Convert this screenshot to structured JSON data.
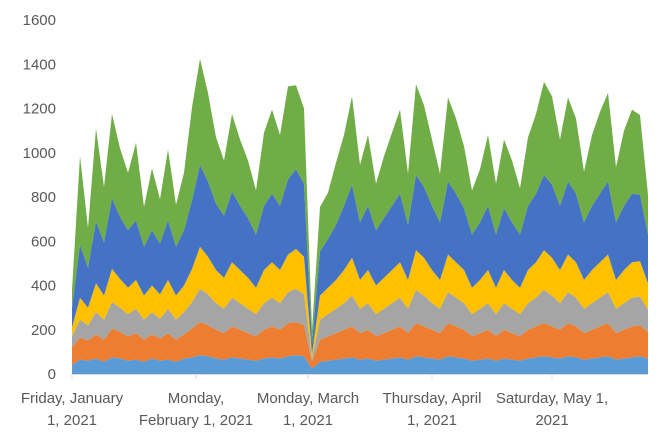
{
  "chart_data": {
    "type": "area",
    "stacked": true,
    "x": [
      "2021-01-01",
      "2021-01-03",
      "2021-01-05",
      "2021-01-07",
      "2021-01-09",
      "2021-01-11",
      "2021-01-13",
      "2021-01-15",
      "2021-01-17",
      "2021-01-19",
      "2021-01-21",
      "2021-01-23",
      "2021-01-25",
      "2021-01-27",
      "2021-01-29",
      "2021-01-31",
      "2021-02-02",
      "2021-02-04",
      "2021-02-06",
      "2021-02-08",
      "2021-02-10",
      "2021-02-12",
      "2021-02-14",
      "2021-02-16",
      "2021-02-18",
      "2021-02-20",
      "2021-02-22",
      "2021-02-24",
      "2021-02-26",
      "2021-02-28",
      "2021-03-02",
      "2021-03-04",
      "2021-03-06",
      "2021-03-08",
      "2021-03-10",
      "2021-03-12",
      "2021-03-14",
      "2021-03-16",
      "2021-03-18",
      "2021-03-20",
      "2021-03-22",
      "2021-03-24",
      "2021-03-26",
      "2021-03-28",
      "2021-03-30",
      "2021-04-01",
      "2021-04-03",
      "2021-04-05",
      "2021-04-07",
      "2021-04-09",
      "2021-04-11",
      "2021-04-13",
      "2021-04-15",
      "2021-04-17",
      "2021-04-19",
      "2021-04-21",
      "2021-04-23",
      "2021-04-25",
      "2021-04-27",
      "2021-04-29",
      "2021-05-01",
      "2021-05-03",
      "2021-05-05",
      "2021-05-07",
      "2021-05-09",
      "2021-05-11",
      "2021-05-13",
      "2021-05-15",
      "2021-05-17",
      "2021-05-19",
      "2021-05-21",
      "2021-05-23",
      "2021-05-25"
    ],
    "x_tick_labels": [
      [
        "Friday, January",
        "1, 2021"
      ],
      [
        "Monday,",
        "February 1, 2021"
      ],
      [
        "Monday, March",
        "1, 2021"
      ],
      [
        "Thursday, April",
        "1, 2021"
      ],
      [
        "Saturday, May 1,",
        "2021"
      ]
    ],
    "x_tick_dates": [
      "2021-01-01",
      "2021-02-01",
      "2021-03-01",
      "2021-04-01",
      "2021-05-01"
    ],
    "y_ticks": [
      0,
      200,
      400,
      600,
      800,
      1000,
      1200,
      1400,
      1600
    ],
    "ylim": [
      0,
      1600
    ],
    "grid": false,
    "legend": "none",
    "series": [
      {
        "color": "#5b9bd5",
        "values": [
          40,
          65,
          60,
          70,
          55,
          75,
          70,
          60,
          65,
          55,
          70,
          60,
          65,
          55,
          70,
          75,
          85,
          80,
          70,
          65,
          75,
          70,
          65,
          60,
          70,
          75,
          70,
          80,
          85,
          80,
          25,
          55,
          60,
          65,
          70,
          75,
          65,
          70,
          60,
          65,
          70,
          75,
          65,
          80,
          75,
          70,
          65,
          80,
          75,
          70,
          60,
          65,
          70,
          60,
          70,
          65,
          60,
          70,
          75,
          80,
          75,
          70,
          80,
          75,
          65,
          70,
          75,
          80,
          65,
          70,
          75,
          80,
          70
        ]
      },
      {
        "color": "#ed7d31",
        "values": [
          80,
          100,
          90,
          110,
          100,
          130,
          120,
          110,
          120,
          100,
          110,
          100,
          120,
          100,
          110,
          130,
          150,
          140,
          130,
          120,
          140,
          130,
          120,
          110,
          130,
          140,
          130,
          150,
          150,
          140,
          30,
          100,
          110,
          120,
          130,
          140,
          120,
          130,
          110,
          120,
          130,
          140,
          120,
          150,
          140,
          130,
          120,
          150,
          140,
          130,
          110,
          120,
          130,
          110,
          130,
          120,
          110,
          130,
          140,
          150,
          140,
          130,
          150,
          140,
          120,
          130,
          140,
          150,
          120,
          130,
          140,
          140,
          120
        ]
      },
      {
        "color": "#a5a5a5",
        "values": [
          50,
          80,
          70,
          100,
          90,
          120,
          110,
          100,
          110,
          90,
          100,
          90,
          110,
          90,
          100,
          120,
          150,
          140,
          120,
          110,
          130,
          120,
          110,
          100,
          120,
          130,
          120,
          140,
          150,
          140,
          15,
          90,
          100,
          110,
          120,
          140,
          110,
          120,
          100,
          110,
          120,
          130,
          110,
          150,
          140,
          120,
          110,
          140,
          130,
          120,
          100,
          110,
          120,
          100,
          120,
          110,
          100,
          120,
          130,
          150,
          140,
          120,
          140,
          130,
          110,
          120,
          130,
          140,
          110,
          120,
          130,
          130,
          100
        ]
      },
      {
        "color": "#ffc000",
        "values": [
          40,
          100,
          80,
          130,
          110,
          150,
          130,
          120,
          130,
          110,
          120,
          110,
          130,
          110,
          120,
          150,
          190,
          170,
          150,
          140,
          160,
          150,
          140,
          120,
          150,
          160,
          150,
          170,
          180,
          170,
          20,
          110,
          120,
          130,
          150,
          170,
          130,
          150,
          130,
          140,
          150,
          160,
          130,
          180,
          170,
          150,
          130,
          170,
          160,
          150,
          120,
          130,
          150,
          120,
          150,
          130,
          120,
          150,
          160,
          180,
          170,
          150,
          170,
          160,
          130,
          150,
          160,
          170,
          130,
          150,
          160,
          160,
          120
        ]
      },
      {
        "color": "#4472c4",
        "values": [
          90,
          240,
          180,
          280,
          240,
          320,
          280,
          260,
          270,
          220,
          250,
          230,
          270,
          220,
          250,
          310,
          370,
          340,
          300,
          280,
          320,
          290,
          270,
          240,
          290,
          310,
          290,
          340,
          360,
          330,
          50,
          200,
          220,
          250,
          290,
          330,
          260,
          290,
          250,
          270,
          290,
          310,
          250,
          340,
          320,
          290,
          260,
          330,
          310,
          280,
          240,
          260,
          290,
          240,
          280,
          260,
          240,
          290,
          310,
          340,
          330,
          290,
          330,
          310,
          260,
          290,
          310,
          330,
          260,
          290,
          310,
          300,
          220
        ]
      },
      {
        "color": "#70ad47",
        "values": [
          80,
          400,
          180,
          420,
          250,
          380,
          310,
          260,
          350,
          180,
          280,
          200,
          320,
          190,
          260,
          420,
          480,
          400,
          300,
          250,
          350,
          300,
          260,
          200,
          330,
          380,
          320,
          420,
          380,
          340,
          60,
          200,
          210,
          280,
          320,
          400,
          260,
          320,
          210,
          280,
          330,
          380,
          230,
          410,
          370,
          300,
          220,
          380,
          340,
          280,
          200,
          240,
          320,
          230,
          310,
          280,
          210,
          310,
          360,
          420,
          400,
          300,
          380,
          340,
          230,
          320,
          370,
          400,
          250,
          340,
          380,
          360,
          180
        ]
      }
    ]
  }
}
